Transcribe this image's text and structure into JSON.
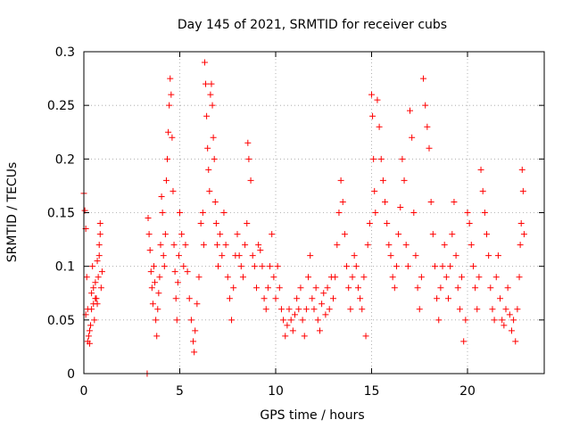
{
  "chart_data": {
    "type": "scatter",
    "title": "Day 145 of 2021, SRMTID for receiver cubs",
    "xlabel": "GPS time / hours",
    "ylabel": "SRMTID / TECUs",
    "xlim": [
      0,
      24
    ],
    "ylim": [
      0,
      0.3
    ],
    "xticks": [
      0,
      5,
      10,
      15,
      20
    ],
    "xtick_labels": [
      "0",
      "5",
      "10",
      "15",
      "20"
    ],
    "yticks": [
      0,
      0.05,
      0.1,
      0.15,
      0.2,
      0.25,
      0.3
    ],
    "ytick_labels": [
      "0",
      "0.05",
      "0.1",
      "0.15",
      "0.2",
      "0.25",
      "0.3"
    ],
    "grid": true,
    "marker": "+",
    "color": "#ff0000",
    "series": [
      {
        "name": "SRMTID",
        "points": [
          [
            0.0,
            0.168
          ],
          [
            0.05,
            0.152
          ],
          [
            0.1,
            0.135
          ],
          [
            0.15,
            0.09
          ],
          [
            0.2,
            0.06
          ],
          [
            0.25,
            0.035
          ],
          [
            0.3,
            0.028
          ],
          [
            0.35,
            0.045
          ],
          [
            0.4,
            0.075
          ],
          [
            0.45,
            0.1
          ],
          [
            0.5,
            0.065
          ],
          [
            0.55,
            0.05
          ],
          [
            0.6,
            0.085
          ],
          [
            0.65,
            0.07
          ],
          [
            0.7,
            0.105
          ],
          [
            0.75,
            0.09
          ],
          [
            0.8,
            0.12
          ],
          [
            0.85,
            0.14
          ],
          [
            0.9,
            0.08
          ],
          [
            0.95,
            0.095
          ],
          [
            0.1,
            0.055
          ],
          [
            0.2,
            0.03
          ],
          [
            0.3,
            0.04
          ],
          [
            0.4,
            0.06
          ],
          [
            0.5,
            0.08
          ],
          [
            0.6,
            0.07
          ],
          [
            0.7,
            0.065
          ],
          [
            0.8,
            0.11
          ],
          [
            0.85,
            0.13
          ],
          [
            3.3,
            0.0
          ],
          [
            3.35,
            0.145
          ],
          [
            3.4,
            0.13
          ],
          [
            3.45,
            0.115
          ],
          [
            3.5,
            0.095
          ],
          [
            3.55,
            0.08
          ],
          [
            3.6,
            0.065
          ],
          [
            3.65,
            0.1
          ],
          [
            3.7,
            0.085
          ],
          [
            3.75,
            0.05
          ],
          [
            3.8,
            0.035
          ],
          [
            3.85,
            0.06
          ],
          [
            3.9,
            0.075
          ],
          [
            3.95,
            0.09
          ],
          [
            4.0,
            0.12
          ],
          [
            4.05,
            0.165
          ],
          [
            4.1,
            0.15
          ],
          [
            4.15,
            0.11
          ],
          [
            4.2,
            0.1
          ],
          [
            4.25,
            0.13
          ],
          [
            4.3,
            0.18
          ],
          [
            4.35,
            0.2
          ],
          [
            4.4,
            0.225
          ],
          [
            4.45,
            0.25
          ],
          [
            4.5,
            0.275
          ],
          [
            4.55,
            0.26
          ],
          [
            4.6,
            0.22
          ],
          [
            4.65,
            0.17
          ],
          [
            4.7,
            0.12
          ],
          [
            4.75,
            0.095
          ],
          [
            4.8,
            0.07
          ],
          [
            4.85,
            0.05
          ],
          [
            4.9,
            0.085
          ],
          [
            4.95,
            0.11
          ],
          [
            5.0,
            0.15
          ],
          [
            5.1,
            0.13
          ],
          [
            5.2,
            0.1
          ],
          [
            5.3,
            0.12
          ],
          [
            5.4,
            0.095
          ],
          [
            5.5,
            0.07
          ],
          [
            5.6,
            0.05
          ],
          [
            5.7,
            0.03
          ],
          [
            5.75,
            0.02
          ],
          [
            5.8,
            0.04
          ],
          [
            5.9,
            0.065
          ],
          [
            6.0,
            0.09
          ],
          [
            6.1,
            0.14
          ],
          [
            6.2,
            0.15
          ],
          [
            6.25,
            0.12
          ],
          [
            6.3,
            0.29
          ],
          [
            6.35,
            0.27
          ],
          [
            6.4,
            0.24
          ],
          [
            6.45,
            0.21
          ],
          [
            6.5,
            0.19
          ],
          [
            6.55,
            0.17
          ],
          [
            6.6,
            0.26
          ],
          [
            6.65,
            0.27
          ],
          [
            6.7,
            0.25
          ],
          [
            6.75,
            0.22
          ],
          [
            6.8,
            0.2
          ],
          [
            6.85,
            0.16
          ],
          [
            6.9,
            0.14
          ],
          [
            6.95,
            0.12
          ],
          [
            7.0,
            0.1
          ],
          [
            7.1,
            0.13
          ],
          [
            7.2,
            0.11
          ],
          [
            7.3,
            0.15
          ],
          [
            7.4,
            0.12
          ],
          [
            7.5,
            0.09
          ],
          [
            7.6,
            0.07
          ],
          [
            7.7,
            0.05
          ],
          [
            7.8,
            0.08
          ],
          [
            7.9,
            0.11
          ],
          [
            8.0,
            0.13
          ],
          [
            8.1,
            0.11
          ],
          [
            8.2,
            0.1
          ],
          [
            8.3,
            0.09
          ],
          [
            8.4,
            0.12
          ],
          [
            8.5,
            0.14
          ],
          [
            8.55,
            0.215
          ],
          [
            8.6,
            0.2
          ],
          [
            8.7,
            0.18
          ],
          [
            8.8,
            0.11
          ],
          [
            8.9,
            0.1
          ],
          [
            9.0,
            0.08
          ],
          [
            9.1,
            0.12
          ],
          [
            9.2,
            0.115
          ],
          [
            9.3,
            0.1
          ],
          [
            9.4,
            0.07
          ],
          [
            9.5,
            0.06
          ],
          [
            9.6,
            0.08
          ],
          [
            9.7,
            0.1
          ],
          [
            9.8,
            0.13
          ],
          [
            9.9,
            0.09
          ],
          [
            10.0,
            0.07
          ],
          [
            10.1,
            0.1
          ],
          [
            10.2,
            0.08
          ],
          [
            10.3,
            0.06
          ],
          [
            10.4,
            0.05
          ],
          [
            10.5,
            0.035
          ],
          [
            10.6,
            0.045
          ],
          [
            10.7,
            0.06
          ],
          [
            10.8,
            0.05
          ],
          [
            10.9,
            0.04
          ],
          [
            11.0,
            0.055
          ],
          [
            11.1,
            0.07
          ],
          [
            11.2,
            0.06
          ],
          [
            11.3,
            0.08
          ],
          [
            11.4,
            0.05
          ],
          [
            11.5,
            0.035
          ],
          [
            11.6,
            0.06
          ],
          [
            11.7,
            0.09
          ],
          [
            11.8,
            0.11
          ],
          [
            11.9,
            0.07
          ],
          [
            12.0,
            0.06
          ],
          [
            12.1,
            0.08
          ],
          [
            12.2,
            0.05
          ],
          [
            12.3,
            0.04
          ],
          [
            12.4,
            0.065
          ],
          [
            12.5,
            0.075
          ],
          [
            12.6,
            0.055
          ],
          [
            12.7,
            0.08
          ],
          [
            12.8,
            0.06
          ],
          [
            12.9,
            0.09
          ],
          [
            13.0,
            0.07
          ],
          [
            13.1,
            0.09
          ],
          [
            13.2,
            0.12
          ],
          [
            13.3,
            0.15
          ],
          [
            13.4,
            0.18
          ],
          [
            13.5,
            0.16
          ],
          [
            13.6,
            0.13
          ],
          [
            13.7,
            0.1
          ],
          [
            13.8,
            0.08
          ],
          [
            13.9,
            0.06
          ],
          [
            14.0,
            0.09
          ],
          [
            14.1,
            0.11
          ],
          [
            14.2,
            0.1
          ],
          [
            14.3,
            0.08
          ],
          [
            14.4,
            0.07
          ],
          [
            14.5,
            0.06
          ],
          [
            14.6,
            0.09
          ],
          [
            14.7,
            0.035
          ],
          [
            14.8,
            0.12
          ],
          [
            14.9,
            0.14
          ],
          [
            15.0,
            0.26
          ],
          [
            15.05,
            0.24
          ],
          [
            15.1,
            0.2
          ],
          [
            15.15,
            0.17
          ],
          [
            15.2,
            0.15
          ],
          [
            15.3,
            0.255
          ],
          [
            15.4,
            0.23
          ],
          [
            15.5,
            0.2
          ],
          [
            15.6,
            0.18
          ],
          [
            15.7,
            0.16
          ],
          [
            15.8,
            0.14
          ],
          [
            15.9,
            0.12
          ],
          [
            16.0,
            0.11
          ],
          [
            16.1,
            0.09
          ],
          [
            16.2,
            0.08
          ],
          [
            16.3,
            0.1
          ],
          [
            16.4,
            0.13
          ],
          [
            16.5,
            0.155
          ],
          [
            16.6,
            0.2
          ],
          [
            16.7,
            0.18
          ],
          [
            16.8,
            0.12
          ],
          [
            16.9,
            0.1
          ],
          [
            17.0,
            0.245
          ],
          [
            17.1,
            0.22
          ],
          [
            17.2,
            0.15
          ],
          [
            17.3,
            0.11
          ],
          [
            17.4,
            0.08
          ],
          [
            17.5,
            0.06
          ],
          [
            17.6,
            0.09
          ],
          [
            17.7,
            0.275
          ],
          [
            17.8,
            0.25
          ],
          [
            17.9,
            0.23
          ],
          [
            18.0,
            0.21
          ],
          [
            18.1,
            0.16
          ],
          [
            18.2,
            0.13
          ],
          [
            18.3,
            0.1
          ],
          [
            18.4,
            0.07
          ],
          [
            18.5,
            0.05
          ],
          [
            18.6,
            0.08
          ],
          [
            18.7,
            0.1
          ],
          [
            18.8,
            0.12
          ],
          [
            18.9,
            0.09
          ],
          [
            19.0,
            0.07
          ],
          [
            19.1,
            0.1
          ],
          [
            19.2,
            0.13
          ],
          [
            19.3,
            0.16
          ],
          [
            19.4,
            0.11
          ],
          [
            19.5,
            0.08
          ],
          [
            19.6,
            0.06
          ],
          [
            19.7,
            0.09
          ],
          [
            19.8,
            0.03
          ],
          [
            19.9,
            0.05
          ],
          [
            20.0,
            0.15
          ],
          [
            20.1,
            0.14
          ],
          [
            20.2,
            0.12
          ],
          [
            20.3,
            0.1
          ],
          [
            20.4,
            0.08
          ],
          [
            20.5,
            0.06
          ],
          [
            20.6,
            0.09
          ],
          [
            20.7,
            0.19
          ],
          [
            20.8,
            0.17
          ],
          [
            20.9,
            0.15
          ],
          [
            21.0,
            0.13
          ],
          [
            21.1,
            0.11
          ],
          [
            21.2,
            0.08
          ],
          [
            21.3,
            0.06
          ],
          [
            21.4,
            0.05
          ],
          [
            21.5,
            0.09
          ],
          [
            21.6,
            0.11
          ],
          [
            21.7,
            0.07
          ],
          [
            21.8,
            0.05
          ],
          [
            21.9,
            0.045
          ],
          [
            22.0,
            0.06
          ],
          [
            22.1,
            0.08
          ],
          [
            22.2,
            0.055
          ],
          [
            22.3,
            0.04
          ],
          [
            22.4,
            0.05
          ],
          [
            22.5,
            0.03
          ],
          [
            22.6,
            0.06
          ],
          [
            22.7,
            0.09
          ],
          [
            22.75,
            0.12
          ],
          [
            22.8,
            0.14
          ],
          [
            22.85,
            0.19
          ],
          [
            22.9,
            0.17
          ],
          [
            22.95,
            0.13
          ]
        ]
      }
    ]
  }
}
